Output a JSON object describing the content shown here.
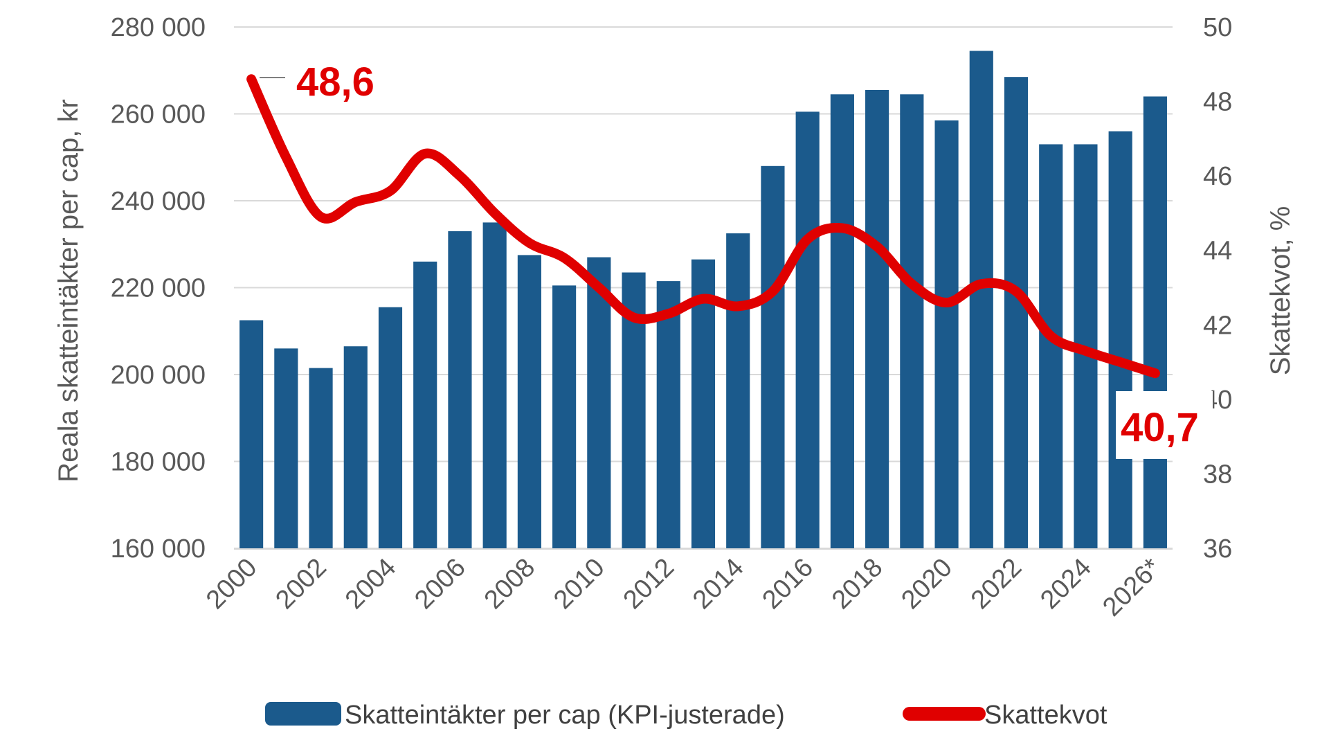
{
  "chart_data": {
    "type": "bar",
    "categories": [
      "2000",
      "2001",
      "2002",
      "2003",
      "2004",
      "2005",
      "2006",
      "2007",
      "2008",
      "2009",
      "2010",
      "2011",
      "2012",
      "2013",
      "2014",
      "2015",
      "2016",
      "2017",
      "2018",
      "2019",
      "2020",
      "2021",
      "2022",
      "2023",
      "2024",
      "2025",
      "2026*"
    ],
    "x_tick_labels": [
      "2000",
      "2002",
      "2004",
      "2006",
      "2008",
      "2010",
      "2012",
      "2014",
      "2016",
      "2018",
      "2020",
      "2022",
      "2024",
      "2026*"
    ],
    "series": [
      {
        "name": "Skatteintäkter per cap (KPI-justerade)",
        "type": "bar",
        "axis": "left",
        "color": "#1b5a8c",
        "values": [
          212500,
          206000,
          201500,
          206500,
          215500,
          226000,
          233000,
          235000,
          227500,
          220500,
          227000,
          223500,
          221500,
          226500,
          232500,
          248000,
          260500,
          264500,
          265500,
          264500,
          258500,
          274500,
          268500,
          253000,
          253000,
          256000,
          264000
        ]
      },
      {
        "name": "Skattekvot",
        "type": "line",
        "axis": "right",
        "color": "#e00000",
        "values": [
          48.6,
          46.5,
          44.9,
          45.3,
          45.6,
          46.6,
          46.0,
          45.0,
          44.2,
          43.8,
          43.0,
          42.2,
          42.3,
          42.7,
          42.5,
          42.9,
          44.3,
          44.6,
          44.1,
          43.1,
          42.6,
          43.1,
          42.9,
          41.7,
          41.3,
          41.0,
          40.7
        ]
      }
    ],
    "left_axis": {
      "title": "Reala skatteintäkter per cap, kr",
      "ylim": [
        160000,
        280000
      ],
      "ticks": [
        "280 000",
        "260 000",
        "240 000",
        "220 000",
        "200 000",
        "180 000",
        "160 000"
      ]
    },
    "right_axis": {
      "title": "Skattekvot, %",
      "ylim": [
        36,
        50
      ],
      "ticks": [
        "50",
        "48",
        "46",
        "44",
        "42",
        "40",
        "38",
        "36"
      ]
    },
    "annotations": {
      "start_value": "48,6",
      "end_value": "40,7"
    },
    "grid": true,
    "legend": "bottom"
  }
}
